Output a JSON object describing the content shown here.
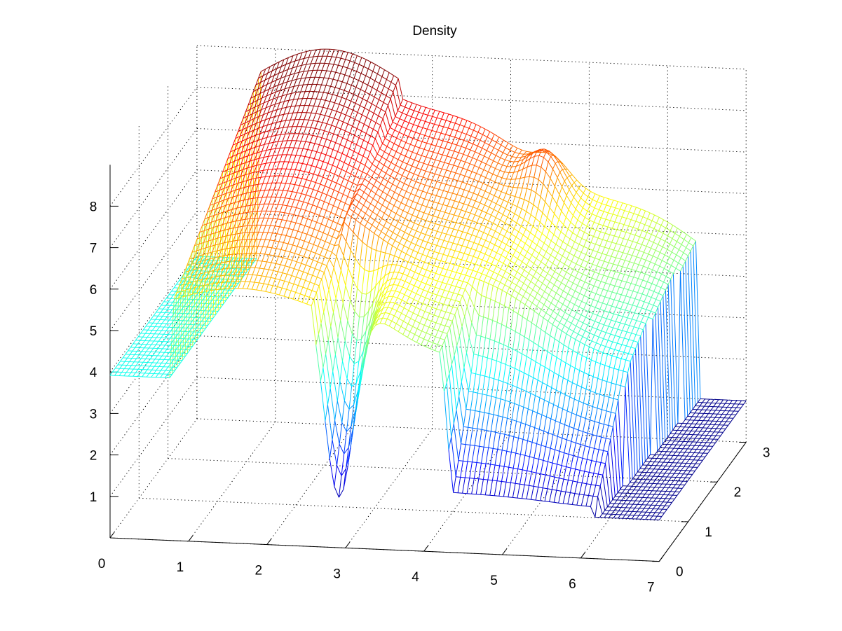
{
  "chart_data": {
    "type": "surface",
    "title": "Density",
    "xlabel": "",
    "ylabel": "",
    "zlabel": "",
    "xlim": [
      0,
      7
    ],
    "ylim": [
      0,
      3
    ],
    "zlim": [
      0,
      9
    ],
    "x_ticks": [
      "0",
      "1",
      "2",
      "3",
      "4",
      "5",
      "6",
      "7"
    ],
    "y_ticks": [
      "0",
      "1",
      "2",
      "3"
    ],
    "z_ticks": [
      "1",
      "2",
      "3",
      "4",
      "5",
      "6",
      "7",
      "8"
    ],
    "grid": "on",
    "colormap": "jet",
    "style": "mesh",
    "z_range_shown": [
      0.9,
      8.6
    ],
    "regions": [
      {
        "x_range": [
          0,
          0.8
        ],
        "z": 3.9
      },
      {
        "x_range": [
          0.8,
          2.5
        ],
        "z_peak": 8.6
      },
      {
        "x_range": [
          2.5,
          6.4
        ],
        "z_range": [
          5.0,
          7.2
        ]
      },
      {
        "x_range": [
          2.5,
          3.1
        ],
        "y_range": [
          0,
          1.0
        ],
        "z_min": 0.9
      },
      {
        "x_range": [
          4.2,
          7
        ],
        "y_range": [
          0,
          1.0
        ],
        "z": 1.0
      },
      {
        "x_range": [
          6.4,
          7
        ],
        "y_range": [
          0,
          3
        ],
        "z": 1.0
      }
    ]
  },
  "colors": {
    "low": "#00008f",
    "mid": "#40ffc0",
    "high": "#800000"
  }
}
